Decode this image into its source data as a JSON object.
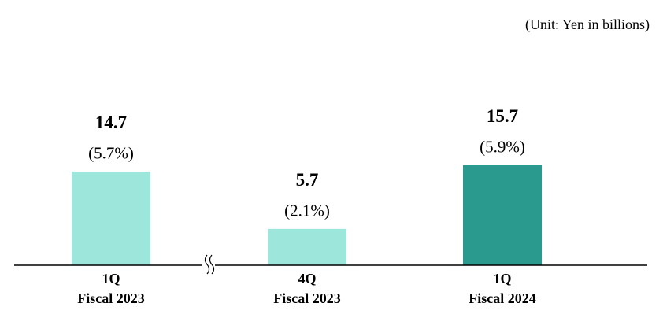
{
  "chart_data": {
    "type": "bar",
    "unit_label": "(Unit: Yen in billions)",
    "categories": [
      [
        "1Q",
        "Fiscal 2023"
      ],
      [
        "4Q",
        "Fiscal 2023"
      ],
      [
        "1Q",
        "Fiscal 2024"
      ]
    ],
    "values": [
      14.7,
      5.7,
      15.7
    ],
    "ratio_labels": [
      "(5.7%)",
      "(2.1%)",
      "(5.9%)"
    ],
    "colors": [
      "#9de6dc",
      "#9de6dc",
      "#2a9a8f"
    ]
  }
}
